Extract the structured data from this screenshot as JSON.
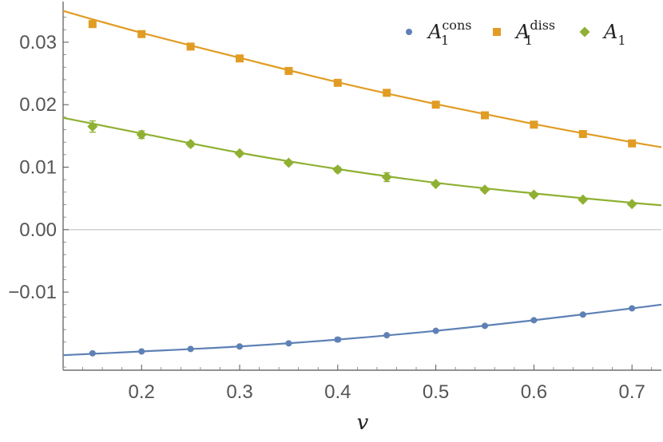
{
  "chart_data": {
    "type": "scatter",
    "xlabel": "v",
    "ylabel": "",
    "xlim": [
      0.12,
      0.73
    ],
    "ylim": [
      -0.0225,
      0.0365
    ],
    "x_ticks": [
      0.2,
      0.3,
      0.4,
      0.5,
      0.6,
      0.7
    ],
    "x_tick_labels": [
      "0.2",
      "0.3",
      "0.4",
      "0.5",
      "0.6",
      "0.7"
    ],
    "y_ticks": [
      0.03,
      0.02,
      0.01,
      0.0,
      -0.01
    ],
    "y_tick_labels": [
      "0.03",
      "0.02",
      "0.01",
      "0.00",
      "−0.01"
    ],
    "x": [
      0.15,
      0.2,
      0.25,
      0.3,
      0.35,
      0.4,
      0.45,
      0.5,
      0.55,
      0.6,
      0.65,
      0.7
    ],
    "legend_position": "top-right",
    "zero_line": true,
    "series": [
      {
        "name_base": "A",
        "name_sub": "1",
        "name_sup": "cons",
        "marker": "circle",
        "color": "#5e81b5",
        "values": [
          -0.0198,
          -0.0195,
          -0.0191,
          -0.0187,
          -0.0182,
          -0.0176,
          -0.0169,
          -0.0162,
          -0.0154,
          -0.0145,
          -0.0136,
          -0.0126
        ],
        "errors": [
          0.0001,
          0.0001,
          0.0001,
          0.0001,
          0.0001,
          0.0003,
          0.0001,
          0.0001,
          0.0001,
          0.0001,
          0.0001,
          0.0001
        ],
        "fit": [
          [
            0.12,
            -0.0201
          ],
          [
            0.2,
            -0.0195
          ],
          [
            0.3,
            -0.0187
          ],
          [
            0.4,
            -0.0176
          ],
          [
            0.5,
            -0.0162
          ],
          [
            0.6,
            -0.0145
          ],
          [
            0.7,
            -0.0126
          ],
          [
            0.73,
            -0.012
          ]
        ]
      },
      {
        "name_base": "A",
        "name_sub": "1",
        "name_sup": "diss",
        "marker": "square",
        "color": "#e19c24",
        "values": [
          0.0329,
          0.0313,
          0.0293,
          0.0274,
          0.0254,
          0.0235,
          0.0219,
          0.02,
          0.0183,
          0.0168,
          0.0153,
          0.0138
        ],
        "errors": [
          0.0005,
          0.0003,
          0.0002,
          0.0002,
          0.0002,
          0.0002,
          0.0003,
          0.0002,
          0.0002,
          0.0002,
          0.0002,
          0.0002
        ],
        "fit": [
          [
            0.12,
            0.035
          ],
          [
            0.2,
            0.0315
          ],
          [
            0.3,
            0.0275
          ],
          [
            0.4,
            0.0236
          ],
          [
            0.5,
            0.0201
          ],
          [
            0.6,
            0.0169
          ],
          [
            0.7,
            0.014
          ],
          [
            0.73,
            0.0132
          ]
        ]
      },
      {
        "name_base": "A",
        "name_sub": "1",
        "name_sup": "",
        "marker": "diamond",
        "color": "#8fb032",
        "values": [
          0.0165,
          0.0152,
          0.0137,
          0.0122,
          0.0107,
          0.0096,
          0.0084,
          0.0073,
          0.0064,
          0.0056,
          0.0048,
          0.0041
        ],
        "errors": [
          0.0009,
          0.0006,
          0.0004,
          0.0003,
          0.0002,
          0.0004,
          0.0007,
          0.0002,
          0.0002,
          0.0003,
          0.0002,
          0.0002
        ],
        "fit": [
          [
            0.12,
            0.0179
          ],
          [
            0.2,
            0.0154
          ],
          [
            0.3,
            0.0123
          ],
          [
            0.4,
            0.0097
          ],
          [
            0.5,
            0.0075
          ],
          [
            0.6,
            0.0058
          ],
          [
            0.7,
            0.0043
          ],
          [
            0.73,
            0.0039
          ]
        ]
      }
    ]
  }
}
